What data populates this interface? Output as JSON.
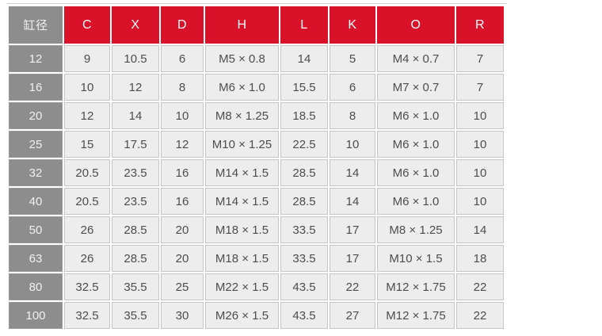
{
  "page": {
    "background": "#ffffff"
  },
  "colors": {
    "header_red": "#d9122a",
    "header_text": "#ffffff",
    "bore_column_gray": "#8d8d8d",
    "bore_column_text": "#f0f0f0",
    "cell_background": "#ededed",
    "cell_border": "#c6c6c6",
    "cell_text": "#4d4d4d",
    "top_rule": "#cfcfcf"
  },
  "chart_data": {
    "type": "table",
    "title": "",
    "columns": [
      "缸径",
      "C",
      "X",
      "D",
      "H",
      "L",
      "K",
      "O",
      "R"
    ],
    "rows": [
      [
        "12",
        "9",
        "10.5",
        "6",
        "M5 × 0.8",
        "14",
        "5",
        "M4 × 0.7",
        "7"
      ],
      [
        "16",
        "10",
        "12",
        "8",
        "M6 × 1.0",
        "15.5",
        "6",
        "M7 × 0.7",
        "7"
      ],
      [
        "20",
        "12",
        "14",
        "10",
        "M8 × 1.25",
        "18.5",
        "8",
        "M6 × 1.0",
        "10"
      ],
      [
        "25",
        "15",
        "17.5",
        "12",
        "M10 × 1.25",
        "22.5",
        "10",
        "M6 × 1.0",
        "10"
      ],
      [
        "32",
        "20.5",
        "23.5",
        "16",
        "M14 × 1.5",
        "28.5",
        "14",
        "M6 × 1.0",
        "10"
      ],
      [
        "40",
        "20.5",
        "23.5",
        "16",
        "M14 × 1.5",
        "28.5",
        "14",
        "M6 × 1.0",
        "10"
      ],
      [
        "50",
        "26",
        "28.5",
        "20",
        "M18 × 1.5",
        "33.5",
        "17",
        "M8 × 1.25",
        "14"
      ],
      [
        "63",
        "26",
        "28.5",
        "20",
        "M18 × 1.5",
        "33.5",
        "17",
        "M10 × 1.5",
        "18"
      ],
      [
        "80",
        "32.5",
        "35.5",
        "25",
        "M22 × 1.5",
        "43.5",
        "22",
        "M12 × 1.75",
        "22"
      ],
      [
        "100",
        "32.5",
        "35.5",
        "30",
        "M26 × 1.5",
        "43.5",
        "27",
        "M12 × 1.75",
        "22"
      ]
    ]
  }
}
